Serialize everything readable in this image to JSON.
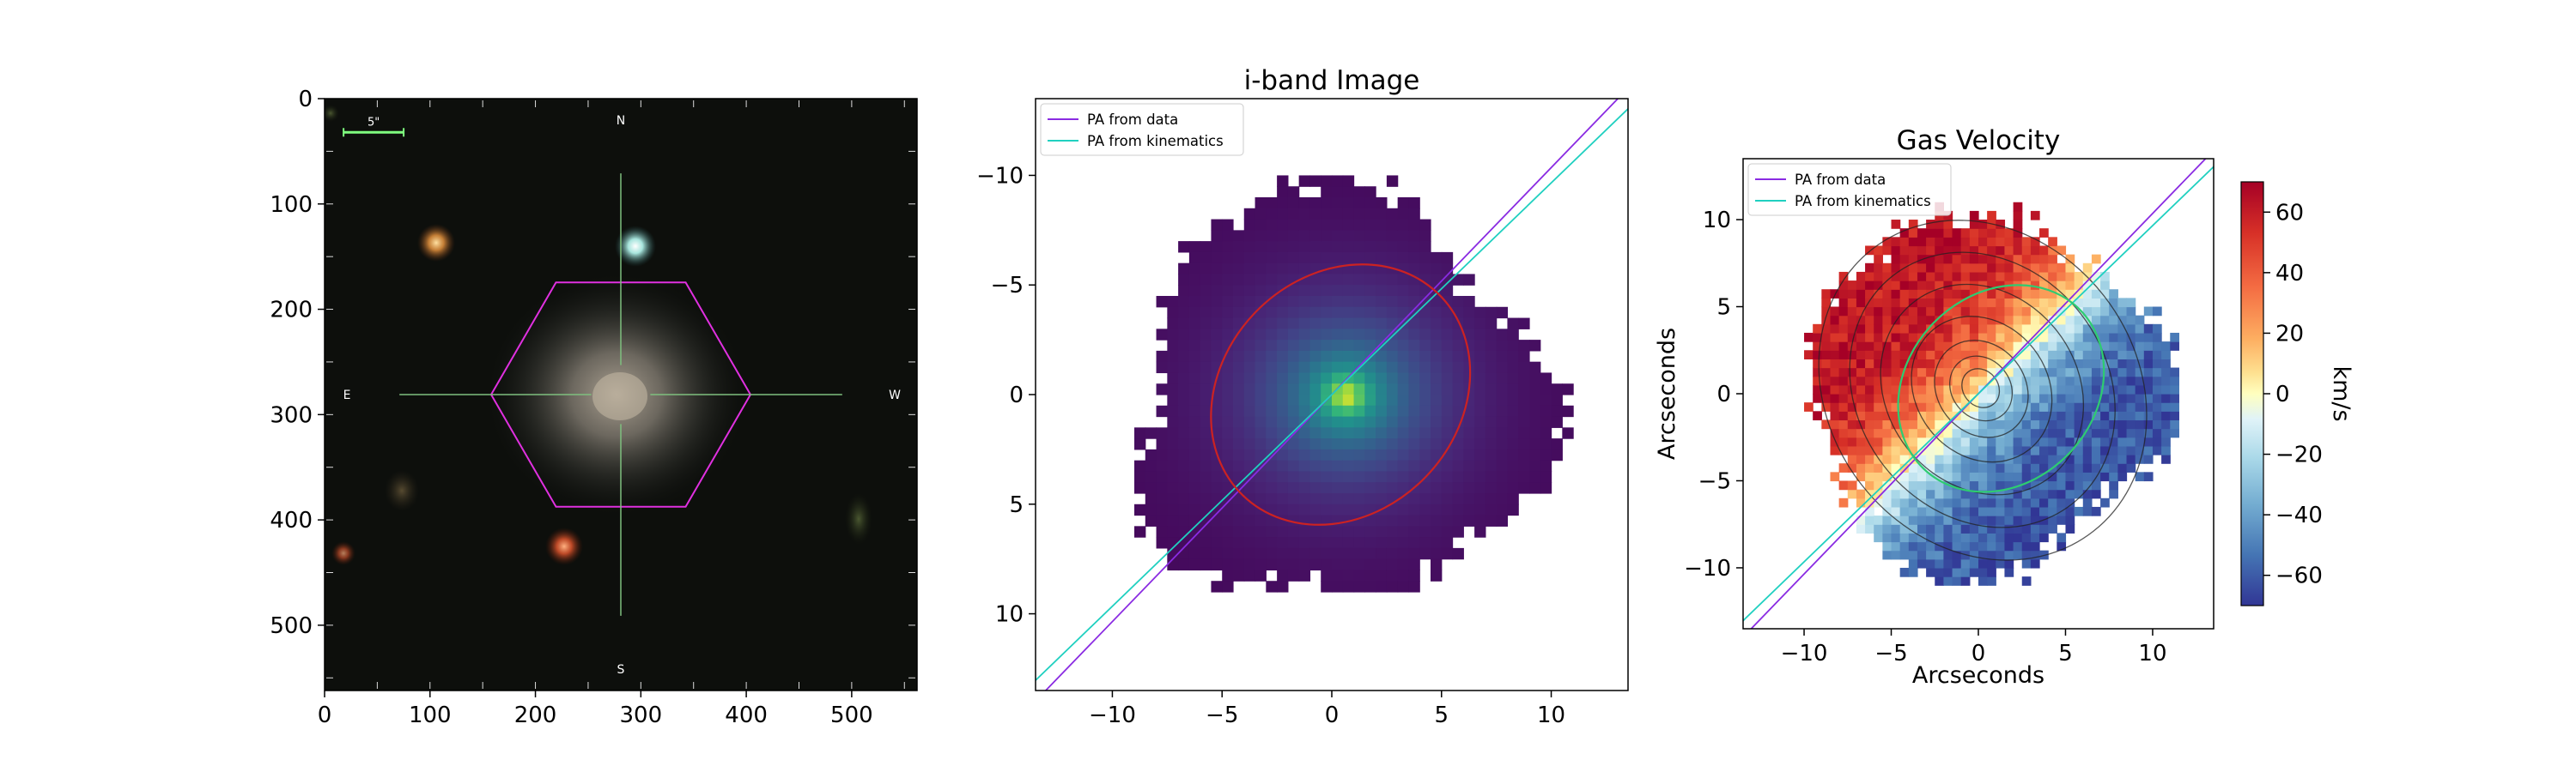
{
  "chart_data": [
    {
      "type": "image",
      "title": "",
      "xlabel": "",
      "ylabel": "",
      "xlim": [
        0,
        562
      ],
      "ylim": [
        562,
        0
      ],
      "x_ticks": [
        0,
        100,
        200,
        300,
        400,
        500
      ],
      "y_ticks": [
        0,
        100,
        200,
        300,
        400,
        500
      ],
      "compass": {
        "north": "N",
        "south": "S",
        "east": "E",
        "west": "W"
      },
      "scale_bar_label": "5\"",
      "hexagon_center": [
        281,
        281
      ],
      "hexagon_radius": 123,
      "crosshair_gap": 28,
      "crosshair_extent": 210,
      "colors": {
        "hexagon": "#e030e0",
        "crosshair": "#7fbf7f",
        "scale_bar": "#7fff7f"
      }
    },
    {
      "type": "heatmap",
      "title": "i-band Image",
      "xlabel": "",
      "ylabel": "",
      "xlim": [
        -13.5,
        13.5
      ],
      "ylim": [
        13.5,
        -13.5
      ],
      "x_ticks": [
        -10,
        -5,
        0,
        5,
        10
      ],
      "y_ticks": [
        -10,
        -5,
        0,
        5,
        10
      ],
      "colormap": "viridis",
      "legend_position": "upper-left",
      "legend": [
        {
          "label": "PA from data",
          "color": "#8a2be2"
        },
        {
          "label": "PA from kinematics",
          "color": "#20d0c0"
        }
      ],
      "pa_lines": {
        "data_angle_deg": 46,
        "kinematics_angle_deg": 44
      },
      "ellipse": {
        "center": [
          0.4,
          0
        ],
        "semi_major": 6.4,
        "semi_minor": 5.4,
        "angle_deg": 46,
        "color": "#cc2222"
      }
    },
    {
      "type": "heatmap",
      "title": "Gas Velocity",
      "xlabel": "Arcseconds",
      "ylabel": "Arcseconds",
      "xlim": [
        -13.5,
        13.5
      ],
      "ylim": [
        -13.5,
        13.5
      ],
      "x_ticks": [
        -10,
        -5,
        0,
        5,
        10
      ],
      "y_ticks": [
        -10,
        -5,
        0,
        5,
        10
      ],
      "colormap": "RdYlBu",
      "legend_position": "upper-left",
      "legend": [
        {
          "label": "PA from data",
          "color": "#8a2be2"
        },
        {
          "label": "PA from kinematics",
          "color": "#20d0c0"
        }
      ],
      "colorbar": {
        "label": "km/s",
        "range": [
          -70,
          70
        ],
        "ticks": [
          60,
          40,
          20,
          0,
          -20,
          -40,
          -60
        ]
      },
      "contour_levels": [
        10.5,
        8.5,
        6.5,
        4.5,
        3.0,
        2.0,
        1.2
      ],
      "ellipse": {
        "center": [
          1.3,
          0.3
        ],
        "semi_major": 6.4,
        "semi_minor": 5.4,
        "angle_deg": 46,
        "color": "#2ecc71"
      }
    }
  ]
}
